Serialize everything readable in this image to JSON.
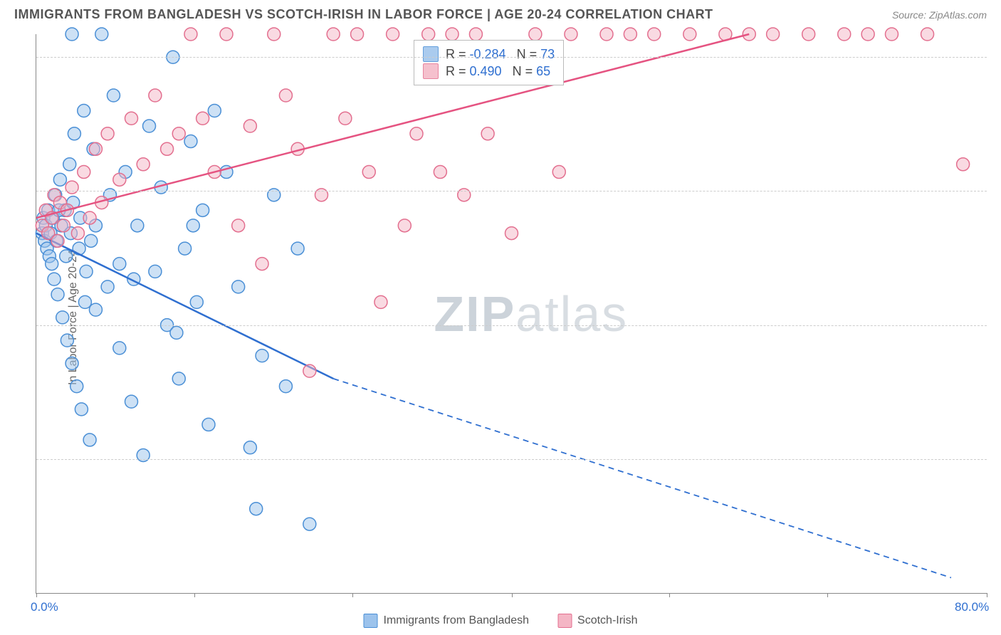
{
  "header": {
    "title": "IMMIGRANTS FROM BANGLADESH VS SCOTCH-IRISH IN LABOR FORCE | AGE 20-24 CORRELATION CHART",
    "source_prefix": "Source: ",
    "source": "ZipAtlas.com"
  },
  "chart": {
    "type": "scatter",
    "ylabel": "In Labor Force | Age 20-24",
    "xlim": [
      0,
      80
    ],
    "ylim": [
      30,
      103
    ],
    "xticks": [
      0,
      13.3,
      26.6,
      40,
      53.3,
      66.6,
      80
    ],
    "xtick_labels_shown": {
      "0": "0.0%",
      "80": "80.0%"
    },
    "yticks": [
      47.5,
      65.0,
      82.5,
      100.0
    ],
    "grid_color": "#cccccc",
    "background_color": "#ffffff",
    "axis_color": "#888888",
    "tick_label_color": "#2f6fd0",
    "watermark": "ZIPatlas",
    "series": [
      {
        "id": "bangladesh",
        "label": "Immigrants from Bangladesh",
        "marker_fill": "#9cc3ec",
        "marker_stroke": "#4a8fd6",
        "marker_fill_opacity": 0.5,
        "marker_radius": 9,
        "line_color": "#2f6fd0",
        "line_width": 2.5,
        "r_value": "-0.284",
        "n_value": "73",
        "trend": {
          "x1": 0,
          "y1": 77,
          "x2_solid": 25,
          "y2_solid": 58,
          "x2_dash": 77,
          "y2_dash": 32
        },
        "points": [
          [
            0.5,
            77
          ],
          [
            0.6,
            79
          ],
          [
            0.7,
            76
          ],
          [
            0.8,
            78
          ],
          [
            0.9,
            75
          ],
          [
            1,
            80
          ],
          [
            1.1,
            74
          ],
          [
            1.2,
            77
          ],
          [
            1.3,
            73
          ],
          [
            1.4,
            79
          ],
          [
            1.5,
            71
          ],
          [
            1.6,
            82
          ],
          [
            1.8,
            69
          ],
          [
            2,
            84
          ],
          [
            2.2,
            66
          ],
          [
            2.4,
            80
          ],
          [
            2.6,
            63
          ],
          [
            2.8,
            86
          ],
          [
            3,
            60
          ],
          [
            3.2,
            90
          ],
          [
            3.4,
            57
          ],
          [
            3.6,
            75
          ],
          [
            3.8,
            54
          ],
          [
            4,
            93
          ],
          [
            4.2,
            72
          ],
          [
            4.5,
            50
          ],
          [
            4.8,
            88
          ],
          [
            5,
            67
          ],
          [
            5.5,
            103
          ],
          [
            6,
            70
          ],
          [
            6.5,
            95
          ],
          [
            7,
            62
          ],
          [
            7.5,
            85
          ],
          [
            8,
            55
          ],
          [
            8.5,
            78
          ],
          [
            9,
            48
          ],
          [
            9.5,
            91
          ],
          [
            10,
            72
          ],
          [
            10.5,
            83
          ],
          [
            11,
            65
          ],
          [
            11.5,
            100
          ],
          [
            12,
            58
          ],
          [
            12.5,
            75
          ],
          [
            13,
            89
          ],
          [
            13.5,
            68
          ],
          [
            14,
            80
          ],
          [
            14.5,
            52
          ],
          [
            15,
            93
          ],
          [
            16,
            85
          ],
          [
            17,
            70
          ],
          [
            18,
            49
          ],
          [
            18.5,
            41
          ],
          [
            19,
            61
          ],
          [
            20,
            82
          ],
          [
            21,
            57
          ],
          [
            22,
            75
          ],
          [
            23,
            39
          ],
          [
            3,
            103
          ],
          [
            5,
            78
          ],
          [
            7,
            73
          ],
          [
            1.7,
            76
          ],
          [
            2.1,
            78
          ],
          [
            2.5,
            74
          ],
          [
            3.1,
            81
          ],
          [
            4.1,
            68
          ],
          [
            2.9,
            77
          ],
          [
            1.9,
            80
          ],
          [
            3.7,
            79
          ],
          [
            4.6,
            76
          ],
          [
            6.2,
            82
          ],
          [
            8.2,
            71
          ],
          [
            11.8,
            64
          ],
          [
            13.2,
            78
          ]
        ]
      },
      {
        "id": "scotch_irish",
        "label": "Scotch-Irish",
        "marker_fill": "#f4b6c5",
        "marker_stroke": "#e36f8f",
        "marker_fill_opacity": 0.5,
        "marker_radius": 9,
        "line_color": "#e55381",
        "line_width": 2.5,
        "r_value": "0.490",
        "n_value": "65",
        "trend": {
          "x1": 0,
          "y1": 79,
          "x2_solid": 60,
          "y2_solid": 103,
          "x2_dash": 60,
          "y2_dash": 103
        },
        "points": [
          [
            0.5,
            78
          ],
          [
            0.8,
            80
          ],
          [
            1,
            77
          ],
          [
            1.3,
            79
          ],
          [
            1.5,
            82
          ],
          [
            1.8,
            76
          ],
          [
            2,
            81
          ],
          [
            2.3,
            78
          ],
          [
            2.6,
            80
          ],
          [
            3,
            83
          ],
          [
            3.5,
            77
          ],
          [
            4,
            85
          ],
          [
            4.5,
            79
          ],
          [
            5,
            88
          ],
          [
            5.5,
            81
          ],
          [
            6,
            90
          ],
          [
            7,
            84
          ],
          [
            8,
            92
          ],
          [
            9,
            86
          ],
          [
            10,
            95
          ],
          [
            11,
            88
          ],
          [
            12,
            90
          ],
          [
            13,
            103
          ],
          [
            14,
            92
          ],
          [
            15,
            85
          ],
          [
            16,
            103
          ],
          [
            17,
            78
          ],
          [
            18,
            91
          ],
          [
            19,
            73
          ],
          [
            20,
            103
          ],
          [
            21,
            95
          ],
          [
            22,
            88
          ],
          [
            23,
            59
          ],
          [
            24,
            82
          ],
          [
            25,
            103
          ],
          [
            26,
            92
          ],
          [
            27,
            103
          ],
          [
            28,
            85
          ],
          [
            29,
            68
          ],
          [
            30,
            103
          ],
          [
            31,
            78
          ],
          [
            32,
            90
          ],
          [
            33,
            103
          ],
          [
            34,
            85
          ],
          [
            35,
            103
          ],
          [
            36,
            82
          ],
          [
            37,
            103
          ],
          [
            38,
            90
          ],
          [
            40,
            77
          ],
          [
            42,
            103
          ],
          [
            44,
            85
          ],
          [
            45,
            103
          ],
          [
            48,
            103
          ],
          [
            50,
            103
          ],
          [
            52,
            103
          ],
          [
            55,
            103
          ],
          [
            58,
            103
          ],
          [
            60,
            103
          ],
          [
            62,
            103
          ],
          [
            65,
            103
          ],
          [
            68,
            103
          ],
          [
            70,
            103
          ],
          [
            72,
            103
          ],
          [
            75,
            103
          ],
          [
            78,
            86
          ]
        ]
      }
    ]
  },
  "legend_stats": {
    "r_label": "R =",
    "n_label": "N ="
  },
  "bottom_legend": {
    "items": [
      "bangladesh",
      "scotch_irish"
    ]
  }
}
